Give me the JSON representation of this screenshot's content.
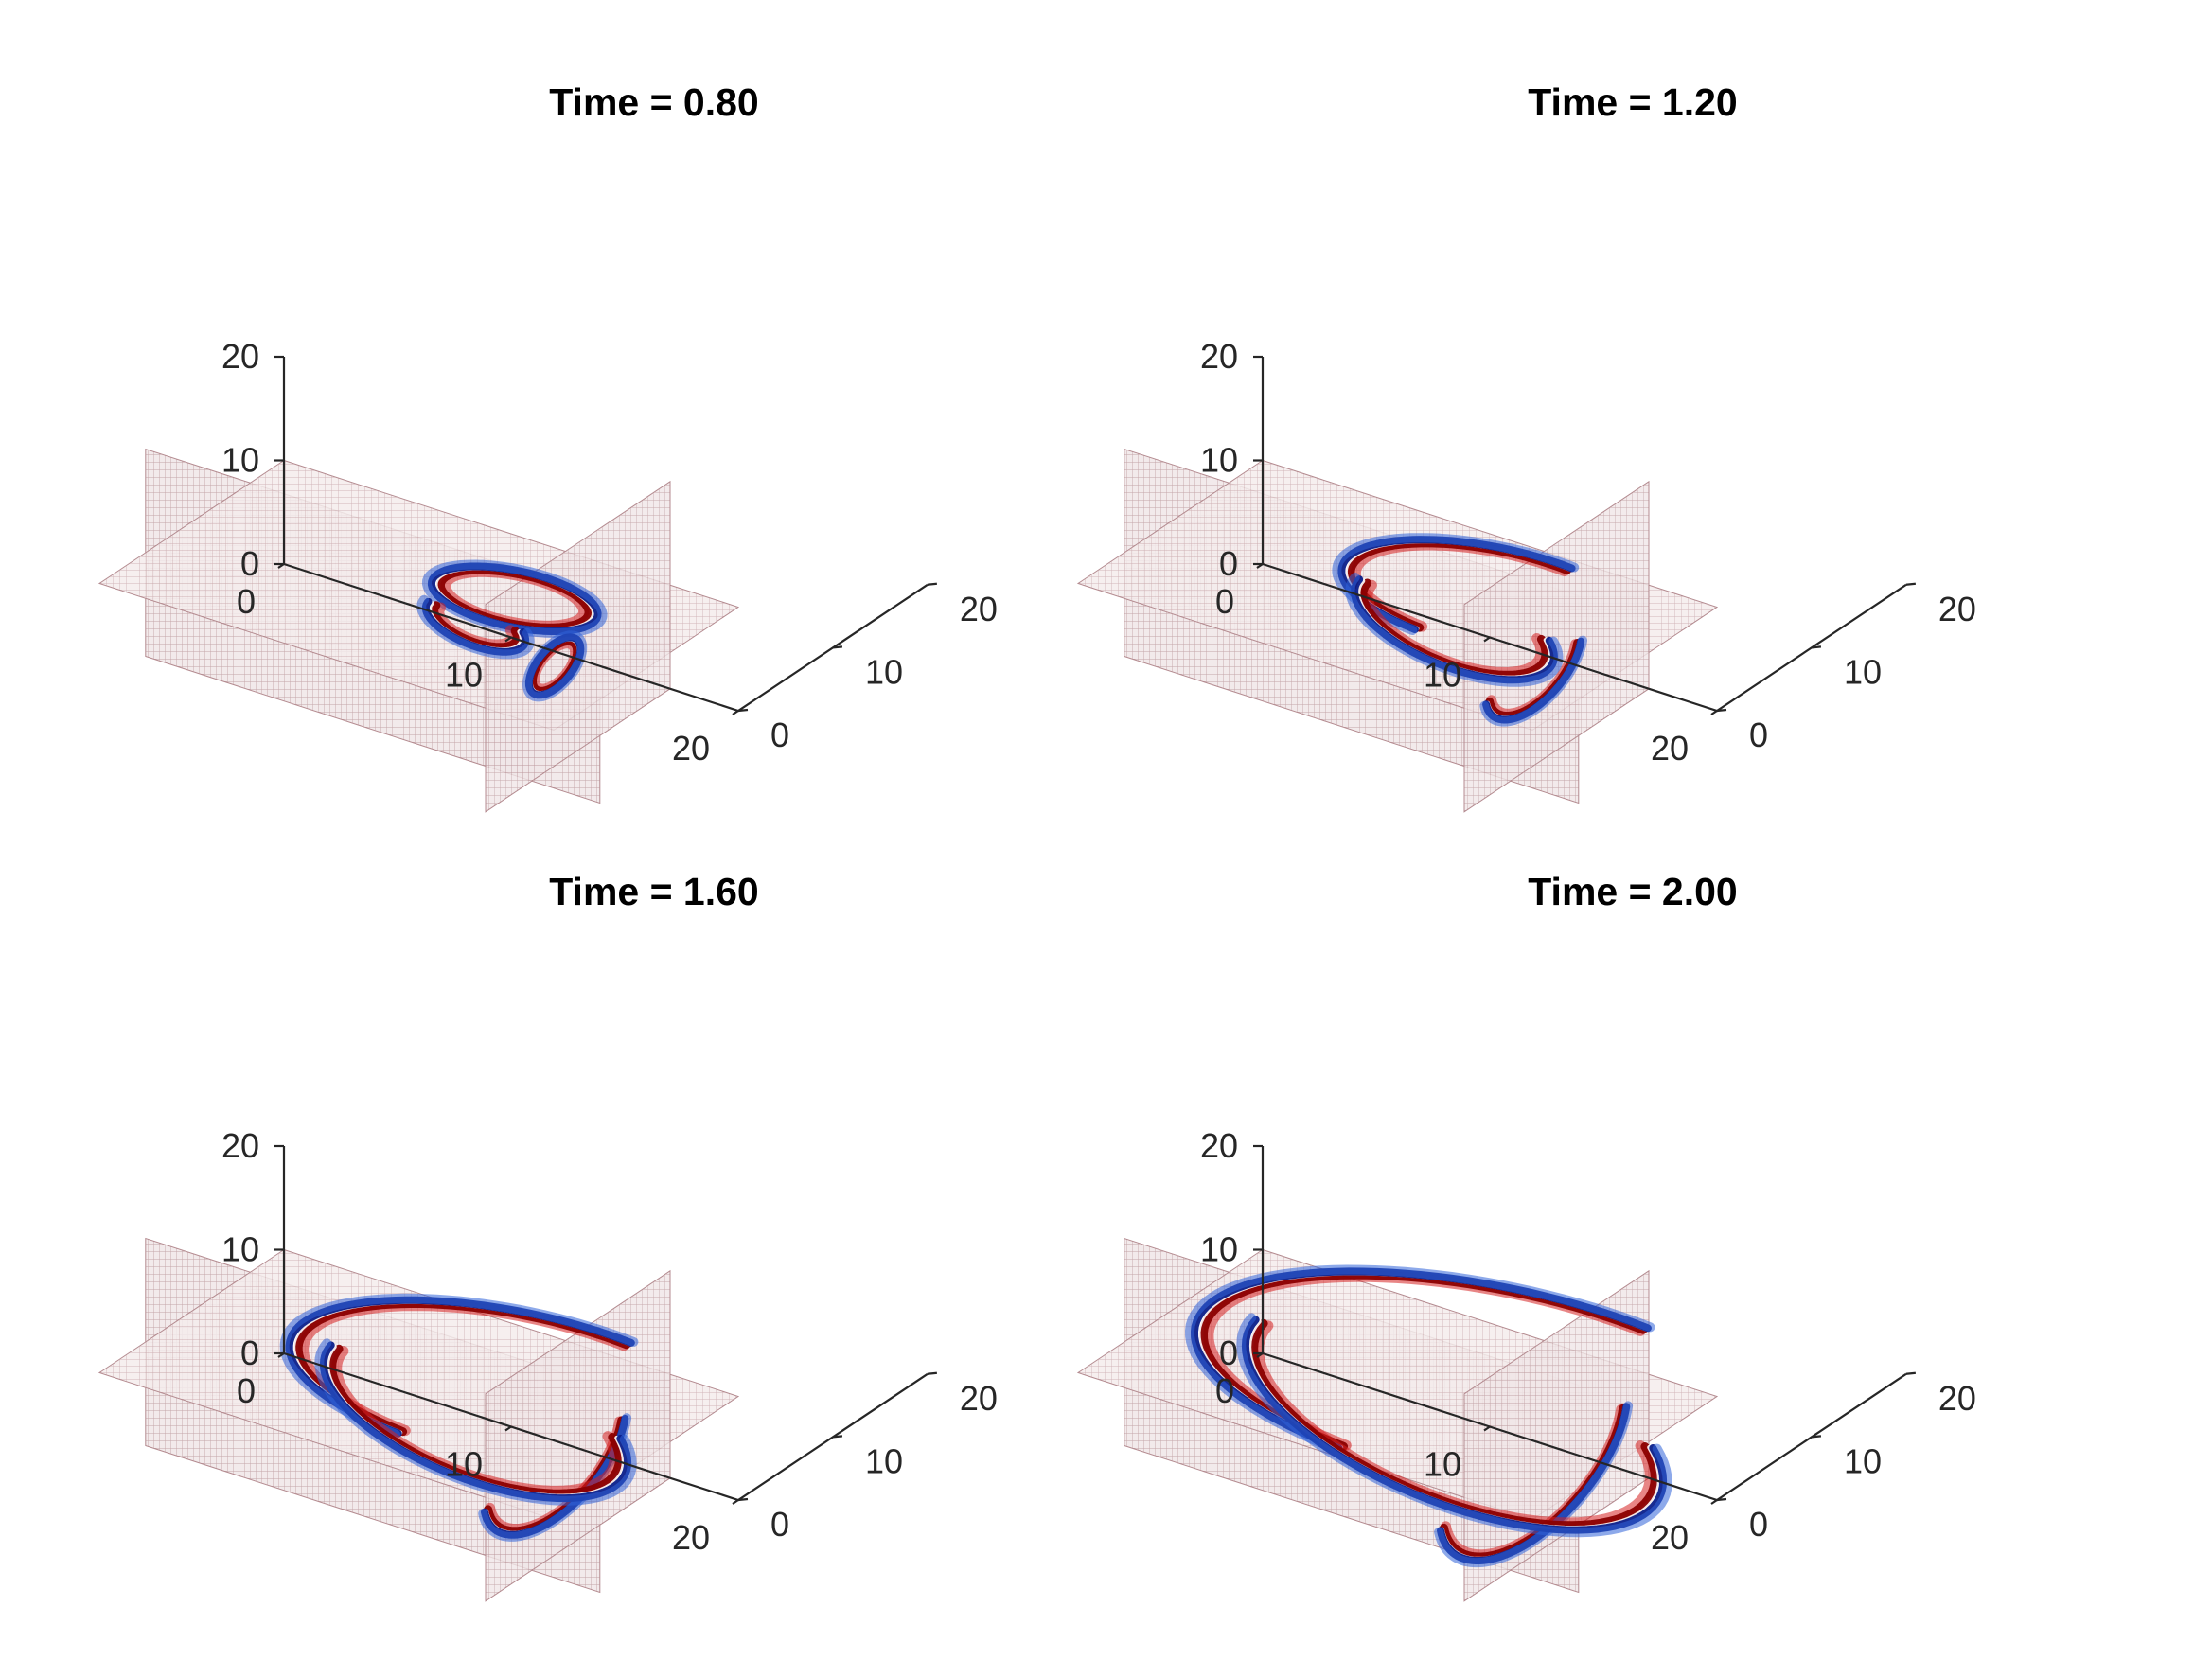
{
  "chart_data": [
    {
      "type": "slice-volume",
      "title": "Time = 0.80",
      "x_ticks": [
        "0",
        "10",
        "20"
      ],
      "y_ticks": [
        "0",
        "10",
        "20"
      ],
      "z_ticks": [
        "0",
        "10",
        "20"
      ],
      "xlim": [
        0,
        20
      ],
      "ylim": [
        0,
        20
      ],
      "zlim": [
        0,
        20
      ],
      "slices": {
        "x": 10,
        "y": 15,
        "z": 10
      },
      "colormap": [
        "#0b1f8a",
        "#2f63d8",
        "#ffffff",
        "#d62020",
        "#8b0000"
      ],
      "grid": false,
      "wavefronts": [
        {
          "slice": "z",
          "center": [
            13,
            7
          ],
          "radius": 3.2,
          "kind": "ring"
        },
        {
          "slice": "x",
          "center": [
            12.5,
            12
          ],
          "radius": 2.6,
          "kind": "ring"
        },
        {
          "slice": "y",
          "center": [
            12.5,
            3
          ],
          "radius": 2.0,
          "kind": "arc"
        }
      ]
    },
    {
      "type": "slice-volume",
      "title": "Time = 1.20",
      "x_ticks": [
        "0",
        "10",
        "20"
      ],
      "y_ticks": [
        "0",
        "10",
        "20"
      ],
      "z_ticks": [
        "0",
        "10",
        "20"
      ],
      "xlim": [
        0,
        20
      ],
      "ylim": [
        0,
        20
      ],
      "zlim": [
        0,
        20
      ],
      "slices": {
        "x": 10,
        "y": 15,
        "z": 10
      },
      "colormap": [
        "#0b1f8a",
        "#2f63d8",
        "#ffffff",
        "#d62020",
        "#8b0000"
      ],
      "grid": false,
      "wavefronts": [
        {
          "slice": "z",
          "center": [
            13,
            7
          ],
          "radius": 6.0,
          "kind": "arc"
        },
        {
          "slice": "x",
          "center": [
            12.5,
            12
          ],
          "radius": 5.0,
          "kind": "chevron"
        },
        {
          "slice": "y",
          "center": [
            12.5,
            3
          ],
          "radius": 4.2,
          "kind": "arc"
        }
      ]
    },
    {
      "type": "slice-volume",
      "title": "Time = 1.60",
      "x_ticks": [
        "0",
        "10",
        "20"
      ],
      "y_ticks": [
        "0",
        "10",
        "20"
      ],
      "z_ticks": [
        "0",
        "10",
        "20"
      ],
      "xlim": [
        0,
        20
      ],
      "ylim": [
        0,
        20
      ],
      "zlim": [
        0,
        20
      ],
      "slices": {
        "x": 10,
        "y": 15,
        "z": 10
      },
      "colormap": [
        "#0b1f8a",
        "#2f63d8",
        "#ffffff",
        "#d62020",
        "#8b0000"
      ],
      "grid": false,
      "wavefronts": [
        {
          "slice": "z",
          "center": [
            13,
            7
          ],
          "radius": 9.0,
          "kind": "arc"
        },
        {
          "slice": "x",
          "center": [
            12.5,
            12
          ],
          "radius": 7.5,
          "kind": "chevron"
        },
        {
          "slice": "y",
          "center": [
            12.5,
            3
          ],
          "radius": 6.5,
          "kind": "arc"
        }
      ]
    },
    {
      "type": "slice-volume",
      "title": "Time = 2.00",
      "x_ticks": [
        "0",
        "10",
        "20"
      ],
      "y_ticks": [
        "0",
        "10",
        "20"
      ],
      "z_ticks": [
        "0",
        "10",
        "20"
      ],
      "xlim": [
        0,
        20
      ],
      "ylim": [
        0,
        20
      ],
      "zlim": [
        0,
        20
      ],
      "slices": {
        "x": 10,
        "y": 15,
        "z": 10
      },
      "colormap": [
        "#0b1f8a",
        "#2f63d8",
        "#ffffff",
        "#d62020",
        "#8b0000"
      ],
      "grid": false,
      "wavefronts": [
        {
          "slice": "z",
          "center": [
            13,
            7
          ],
          "radius": 12.0,
          "kind": "arc"
        },
        {
          "slice": "x",
          "center": [
            12.5,
            12
          ],
          "radius": 10.0,
          "kind": "chevron"
        },
        {
          "slice": "y",
          "center": [
            12.5,
            3
          ],
          "radius": 9.0,
          "kind": "arc"
        }
      ]
    }
  ]
}
